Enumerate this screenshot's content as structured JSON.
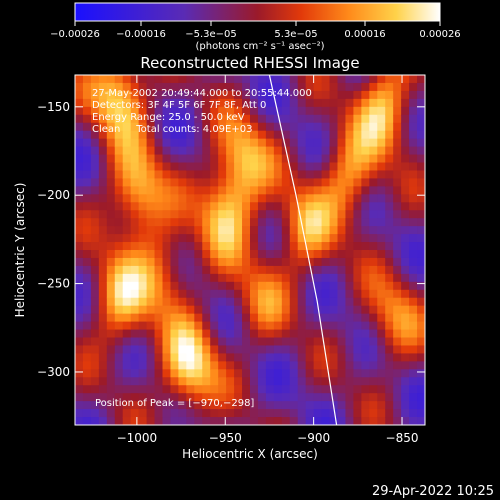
{
  "chart_data": {
    "type": "heatmap",
    "title": "Reconstructed RHESSI Image",
    "xlabel": "Heliocentric X (arcsec)",
    "ylabel": "Heliocentric Y (arcsec)",
    "xlim": [
      -1035,
      -837
    ],
    "ylim": [
      -330,
      -132
    ],
    "x_ticks": [
      {
        "value": -1000,
        "label": "−1000"
      },
      {
        "value": -950,
        "label": "−950"
      },
      {
        "value": -900,
        "label": "−900"
      },
      {
        "value": -850,
        "label": "−850"
      }
    ],
    "y_ticks": [
      {
        "value": -150,
        "label": "−150"
      },
      {
        "value": -200,
        "label": "−200"
      },
      {
        "value": -250,
        "label": "−250"
      },
      {
        "value": -300,
        "label": "−300"
      }
    ],
    "colorbar": {
      "range": [
        -0.00026,
        0.00026
      ],
      "tick_labels": [
        "−0.00026",
        "−0.00016",
        "−5.3e−05",
        "5.3e−05",
        "0.00016",
        "0.00026"
      ],
      "units": "(photons cm⁻² s⁻¹ asec⁻²)",
      "colormap": [
        "#1a10ff",
        "#5a2bb4",
        "#9b1a2a",
        "#e23a0a",
        "#ff8a1a",
        "#ffd24a",
        "#ffffff"
      ]
    },
    "peak": [
      -970,
      -298
    ],
    "blobs": [
      {
        "x": -1010,
        "y": -142,
        "amp": 1.0
      },
      {
        "x": -1000,
        "y": -200,
        "amp": 0.9
      },
      {
        "x": -1010,
        "y": -260,
        "amp": 0.8
      },
      {
        "x": -970,
        "y": -298,
        "amp": 1.0
      },
      {
        "x": -950,
        "y": -210,
        "amp": 0.85
      },
      {
        "x": -940,
        "y": -180,
        "amp": 0.75
      },
      {
        "x": -905,
        "y": -220,
        "amp": 0.7
      },
      {
        "x": -880,
        "y": -190,
        "amp": 0.75
      },
      {
        "x": -860,
        "y": -150,
        "amp": 0.9
      },
      {
        "x": -855,
        "y": -270,
        "amp": 0.6
      },
      {
        "x": -985,
        "y": -245,
        "amp": 0.6
      },
      {
        "x": -930,
        "y": -260,
        "amp": 0.5
      }
    ],
    "limb": [
      [
        -925,
        -132
      ],
      [
        -910,
        -200
      ],
      [
        -898,
        -260
      ],
      [
        -887,
        -330
      ]
    ]
  },
  "annotations": {
    "time": "27-May-2002 20:49:44.000 to 20:55:44.000",
    "detectors": "Detectors: 3F 4F 5F 6F 7F 8F, Att 0",
    "energy": "Energy Range: 25.0 - 50.0 keV",
    "clean": "Clean     Total counts: 4.09E+03",
    "peak": "Position of Peak = [−970,−298]"
  },
  "footer": {
    "timestamp": "29-Apr-2022 10:25"
  }
}
